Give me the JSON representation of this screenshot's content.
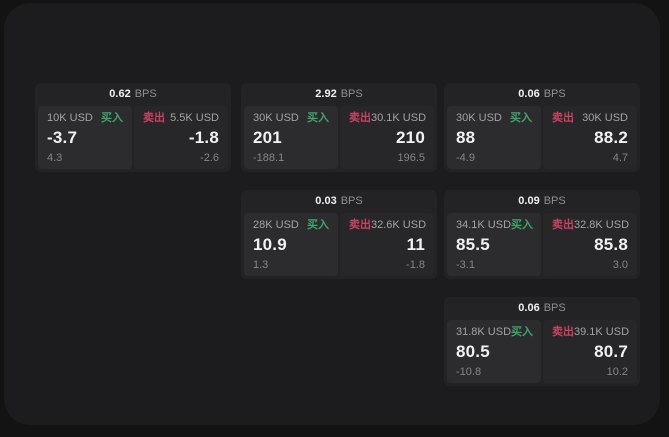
{
  "labels": {
    "bps_unit": "BPS",
    "buy": "买入",
    "sell": "卖出"
  },
  "colors": {
    "buy": "#3ea568",
    "sell": "#c9425f",
    "surface": "#1c1c1e",
    "background": "#131314",
    "card": "#232326",
    "buy_panel": "#2c2c2f",
    "sell_panel": "#27272a"
  },
  "cards": [
    {
      "bps": "0.62",
      "buy": {
        "size": "10K USD",
        "price": "-3.7",
        "sub": "4.3"
      },
      "sell": {
        "size": "5.5K USD",
        "price": "-1.8",
        "sub": "-2.6"
      }
    },
    {
      "bps": "2.92",
      "buy": {
        "size": "30K USD",
        "price": "201",
        "sub": "-188.1"
      },
      "sell": {
        "size": "30.1K USD",
        "price": "210",
        "sub": "196.5"
      }
    },
    {
      "bps": "0.06",
      "buy": {
        "size": "30K USD",
        "price": "88",
        "sub": "-4.9"
      },
      "sell": {
        "size": "30K USD",
        "price": "88.2",
        "sub": "4.7"
      }
    },
    {
      "bps": "0.03",
      "buy": {
        "size": "28K USD",
        "price": "10.9",
        "sub": "1.3"
      },
      "sell": {
        "size": "32.6K USD",
        "price": "11",
        "sub": "-1.8"
      }
    },
    {
      "bps": "0.09",
      "buy": {
        "size": "34.1K USD",
        "price": "85.5",
        "sub": "-3.1"
      },
      "sell": {
        "size": "32.8K USD",
        "price": "85.8",
        "sub": "3.0"
      }
    },
    {
      "bps": "0.06",
      "buy": {
        "size": "31.8K USD",
        "price": "80.5",
        "sub": "-10.8"
      },
      "sell": {
        "size": "39.1K USD",
        "price": "80.7",
        "sub": "10.2"
      }
    }
  ]
}
